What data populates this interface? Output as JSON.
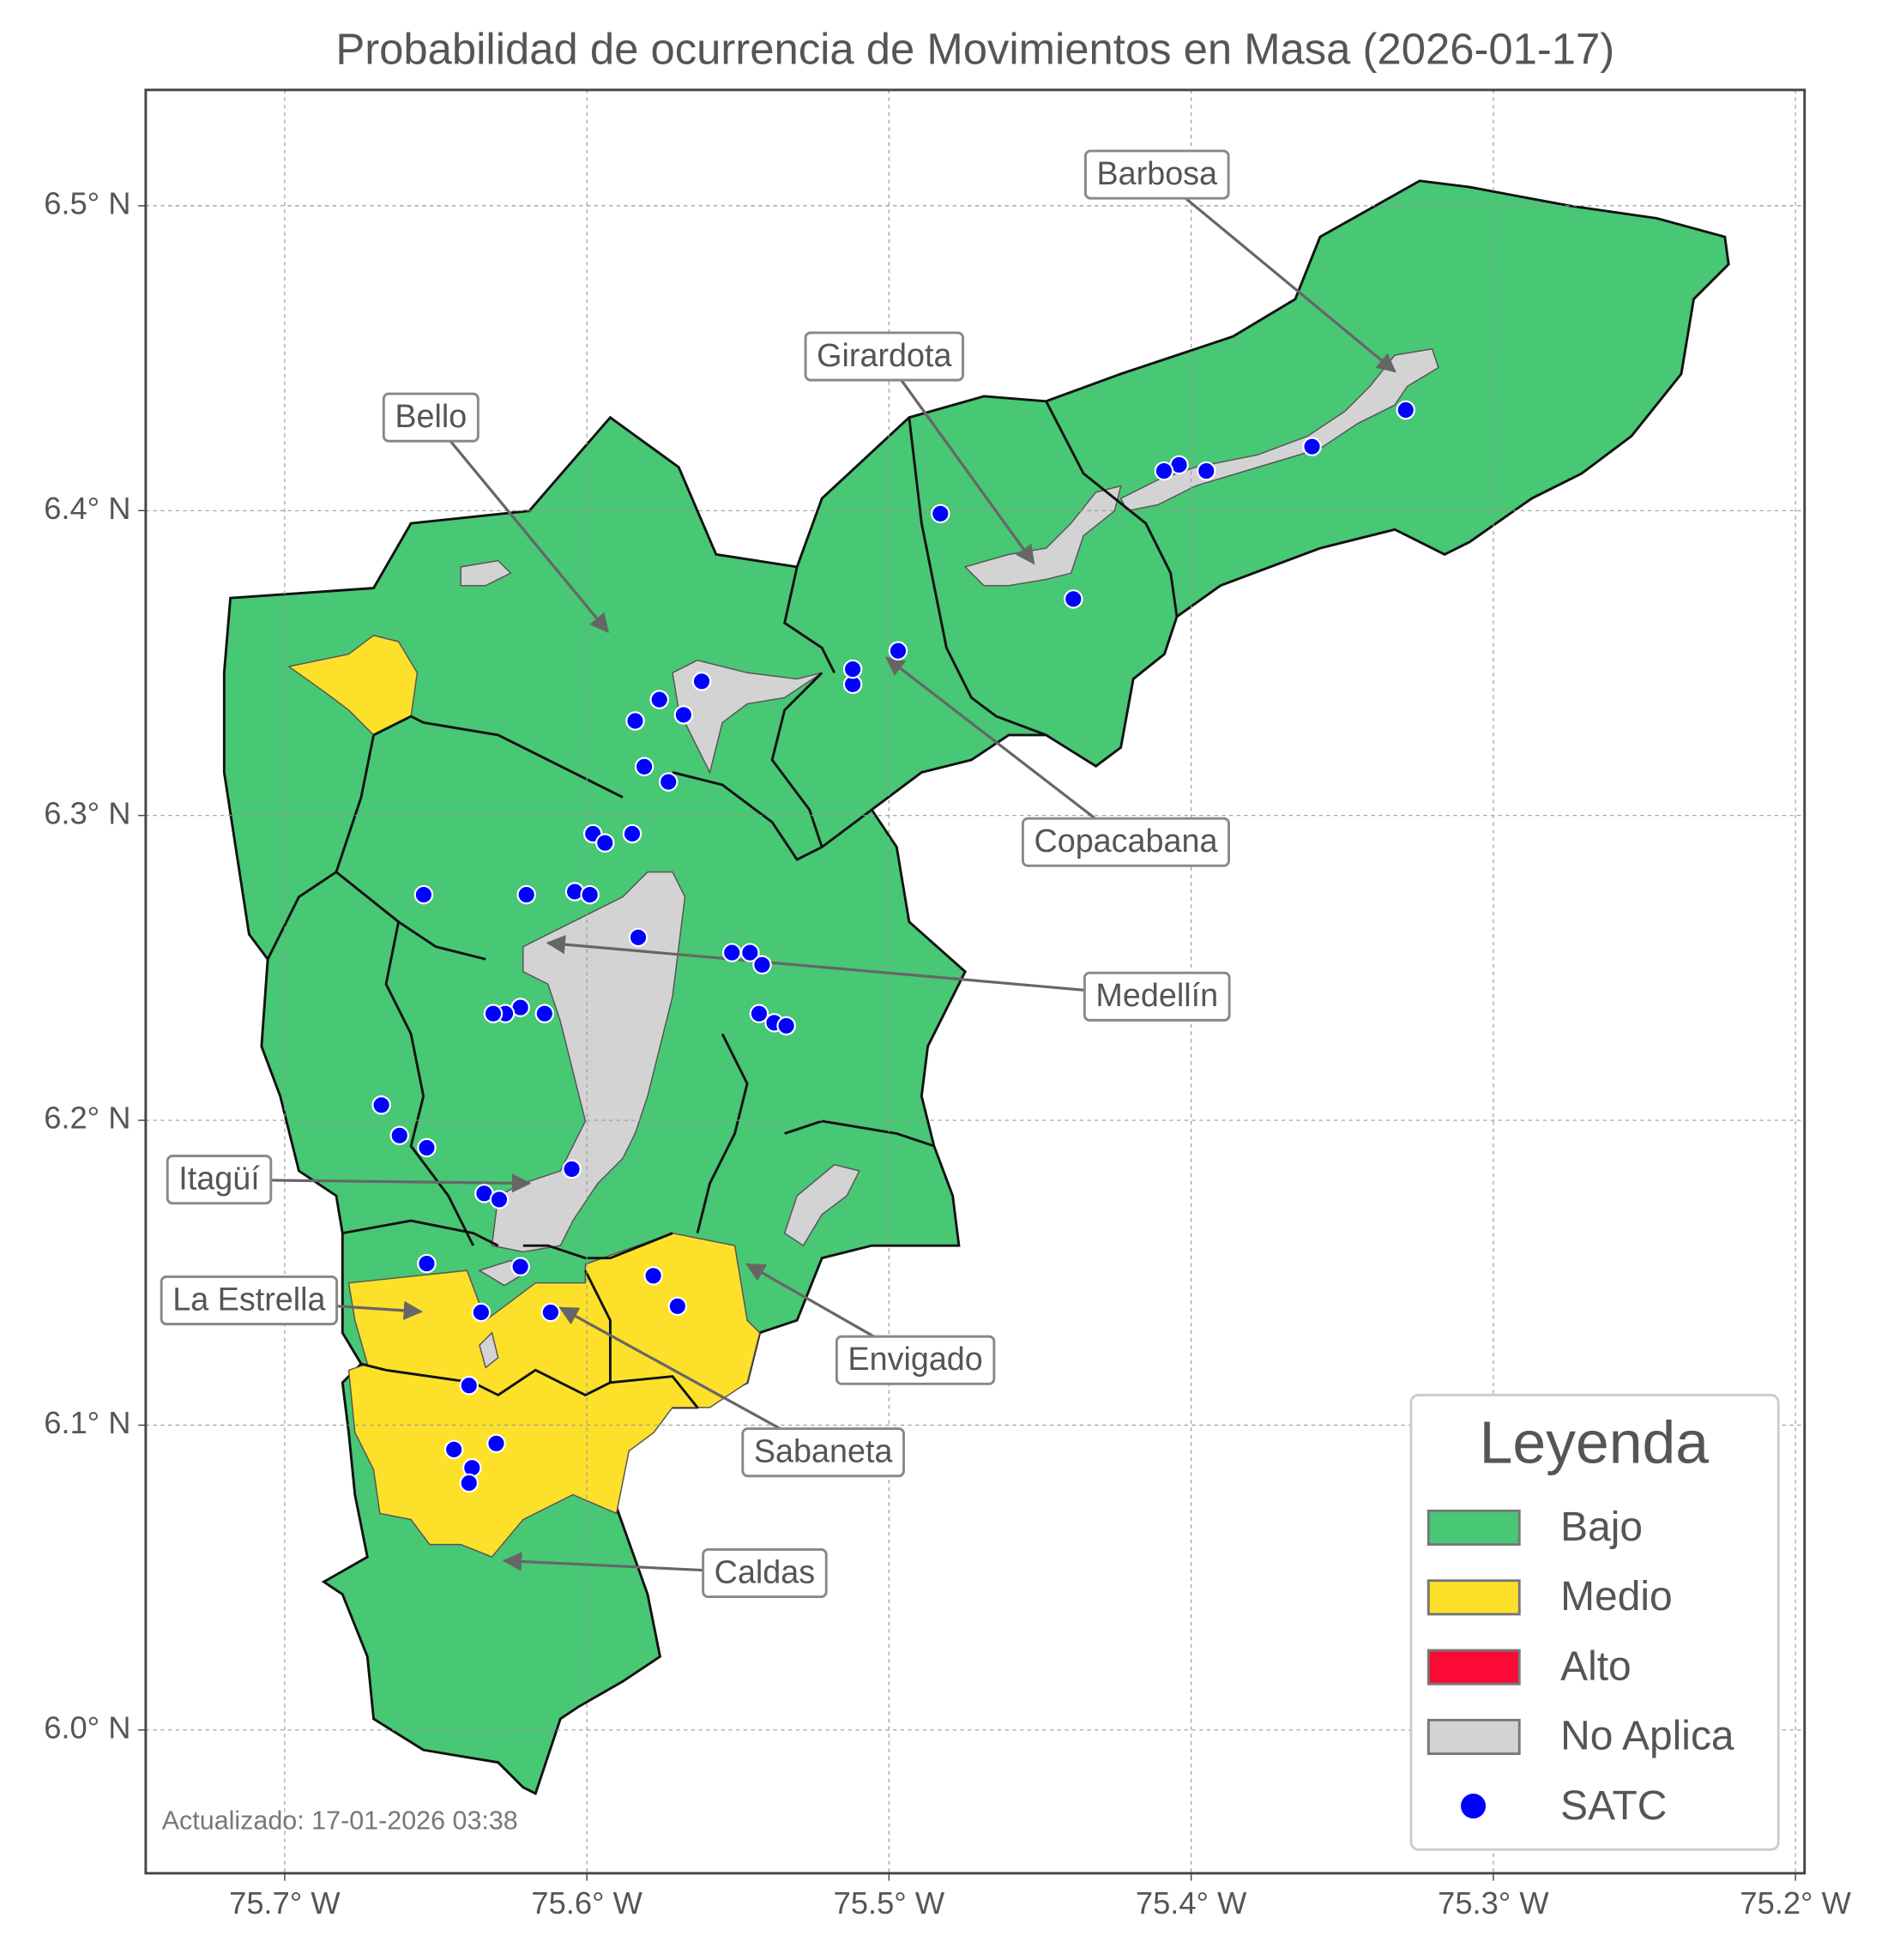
{
  "map": {
    "title": "Probabilidad de ocurrencia de Movimientos en Masa (2026-01-17)",
    "xlim": [
      -75.746,
      -75.197
    ],
    "ylim": [
      5.953,
      6.538
    ],
    "xticks": [
      {
        "value": -75.7,
        "label": "75.7° W"
      },
      {
        "value": -75.6,
        "label": "75.6° W"
      },
      {
        "value": -75.5,
        "label": "75.5° W"
      },
      {
        "value": -75.4,
        "label": "75.4° W"
      },
      {
        "value": -75.3,
        "label": "75.3° W"
      },
      {
        "value": -75.2,
        "label": "75.2° W"
      }
    ],
    "yticks": [
      {
        "value": 6.0,
        "label": "6.0° N"
      },
      {
        "value": 6.1,
        "label": "6.1° N"
      },
      {
        "value": 6.2,
        "label": "6.2° N"
      },
      {
        "value": 6.3,
        "label": "6.3° N"
      },
      {
        "value": 6.4,
        "label": "6.4° N"
      },
      {
        "value": 6.5,
        "label": "6.5° N"
      }
    ],
    "grid": true,
    "legend": {
      "title": "Leyenda",
      "items": [
        {
          "label": "Bajo",
          "color": "#48c774"
        },
        {
          "label": "Medio",
          "color": "#fde02a"
        },
        {
          "label": "Alto",
          "color": "#fb0a35"
        },
        {
          "label": "No Aplica",
          "color": "#d3d3d3"
        }
      ]
    },
    "stations": {
      "name": "SATC",
      "color": "#0000ff",
      "lon": [
        -75.329,
        -75.36,
        -75.395,
        -75.404,
        -75.409,
        -75.483,
        -75.439,
        -75.497,
        -75.512,
        -75.512,
        -75.562,
        -75.568,
        -75.576,
        -75.584,
        -75.581,
        -75.573,
        -75.598,
        -75.594,
        -75.585,
        -75.654,
        -75.62,
        -75.604,
        -75.599,
        -75.583,
        -75.552,
        -75.546,
        -75.542,
        -75.543,
        -75.538,
        -75.534,
        -75.622,
        -75.627,
        -75.631,
        -75.614,
        -75.668,
        -75.662,
        -75.653,
        -75.605,
        -75.634,
        -75.629,
        -75.653,
        -75.622,
        -75.578,
        -75.57,
        -75.635,
        -75.612,
        -75.639,
        -75.644,
        -75.63,
        -75.638,
        -75.639
      ],
      "lat": [
        6.433,
        6.421,
        6.413,
        6.415,
        6.413,
        6.399,
        6.371,
        6.354,
        6.343,
        6.348,
        6.344,
        6.333,
        6.338,
        6.331,
        6.316,
        6.311,
        6.294,
        6.291,
        6.294,
        6.274,
        6.274,
        6.275,
        6.274,
        6.26,
        6.255,
        6.255,
        6.251,
        6.235,
        6.232,
        6.231,
        6.237,
        6.235,
        6.235,
        6.235,
        6.205,
        6.195,
        6.191,
        6.184,
        6.176,
        6.174,
        6.153,
        6.152,
        6.149,
        6.139,
        6.137,
        6.137,
        6.113,
        6.092,
        6.094,
        6.086,
        6.081
      ]
    },
    "annotations": [
      "Barbosa",
      "Girardota",
      "Bello",
      "Copacabana",
      "Medellín",
      "Itagüí",
      "La Estrella",
      "Envigado",
      "Sabaneta",
      "Caldas"
    ],
    "footnote": "Actualizado: 17-01-2026 03:38"
  }
}
